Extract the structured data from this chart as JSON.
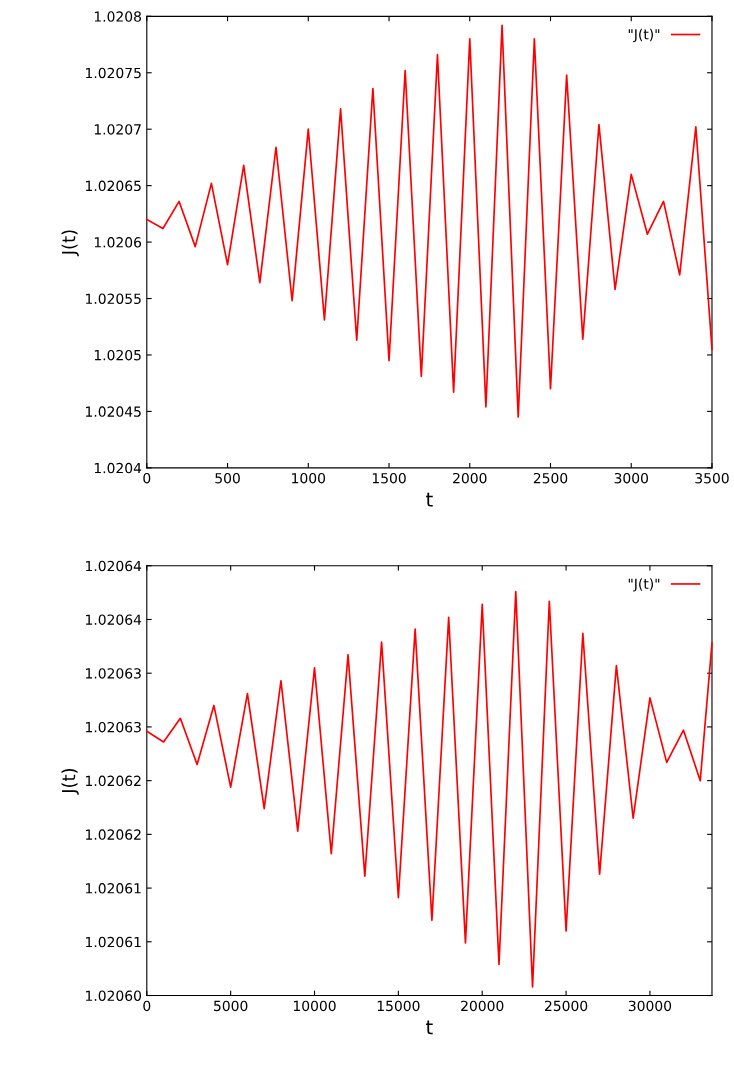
{
  "chart_data": [
    {
      "type": "line",
      "xlabel": "t",
      "ylabel": "J(t)",
      "legend": "top right",
      "grid": false,
      "line_style": "solid",
      "xlim": [
        0,
        3500
      ],
      "xticks": [
        0,
        500,
        1000,
        1500,
        2000,
        2500,
        3000,
        3500
      ],
      "ylim": [
        1.0204,
        1.0208
      ],
      "yticks": [
        1.0204,
        1.02045,
        1.0205,
        1.02055,
        1.0206,
        1.02065,
        1.0207,
        1.02075,
        1.0208
      ],
      "series": [
        {
          "name": "\"J(t)\"",
          "color": "#ff0000",
          "x": [
            0,
            100,
            200,
            300,
            400,
            500,
            600,
            700,
            800,
            900,
            1000,
            1100,
            1200,
            1300,
            1400,
            1500,
            1600,
            1700,
            1800,
            1900,
            2000,
            2100,
            2200,
            2300,
            2400,
            2500,
            2600,
            2700,
            2800,
            2900,
            3000,
            3100,
            3200,
            3300,
            3400,
            3500
          ],
          "values": [
            1.02062,
            1.020612,
            1.020636,
            1.020596,
            1.020652,
            1.02058,
            1.020668,
            1.020564,
            1.020684,
            1.020548,
            1.0207,
            1.020531,
            1.020718,
            1.020513,
            1.020736,
            1.020495,
            1.020752,
            1.020481,
            1.020766,
            1.020467,
            1.02078,
            1.020454,
            1.020792,
            1.020445,
            1.02078,
            1.02047,
            1.020748,
            1.020514,
            1.020704,
            1.020558,
            1.02066,
            1.020607,
            1.020636,
            1.020571,
            1.020702,
            1.020505
          ]
        }
      ]
    },
    {
      "type": "line",
      "xlabel": "t",
      "ylabel": "J(t)",
      "legend": "top right",
      "grid": false,
      "line_style": "solid",
      "xlim": [
        0,
        33700
      ],
      "xticks": [
        0,
        5000,
        10000,
        15000,
        20000,
        25000,
        30000
      ],
      "ylim": [
        1.0206,
        1.02064
      ],
      "yticks": [
        {
          "value": 1.0206,
          "label": "1.02060"
        },
        {
          "value": 1.020605,
          "label": "1.02061"
        },
        {
          "value": 1.02061,
          "label": "1.02061"
        },
        {
          "value": 1.020615,
          "label": "1.02062"
        },
        {
          "value": 1.02062,
          "label": "1.02062"
        },
        {
          "value": 1.020625,
          "label": "1.02063"
        },
        {
          "value": 1.02063,
          "label": "1.02063"
        },
        {
          "value": 1.020635,
          "label": "1.02064"
        },
        {
          "value": 1.02064,
          "label": "1.02064"
        }
      ],
      "series": [
        {
          "name": "\"J(t)\"",
          "color": "#ff0000",
          "x": [
            0,
            1000,
            2000,
            3000,
            4000,
            5000,
            6000,
            7000,
            8000,
            9000,
            10000,
            11000,
            12000,
            13000,
            14000,
            15000,
            16000,
            17000,
            18000,
            19000,
            20000,
            21000,
            22000,
            23000,
            24000,
            25000,
            26000,
            27000,
            28000,
            29000,
            30000,
            31000,
            32000,
            33000,
            33700
          ],
          "values": [
            1.0206246,
            1.0206236,
            1.0206258,
            1.0206215,
            1.020627,
            1.0206194,
            1.0206281,
            1.0206174,
            1.0206293,
            1.0206153,
            1.0206305,
            1.0206132,
            1.0206317,
            1.0206111,
            1.0206329,
            1.0206091,
            1.0206341,
            1.020607,
            1.0206352,
            1.0206049,
            1.0206364,
            1.0206029,
            1.0206376,
            1.0206008,
            1.0206367,
            1.020606,
            1.0206337,
            1.0206113,
            1.0206307,
            1.0206165,
            1.0206277,
            1.0206217,
            1.0206247,
            1.02062,
            1.0206328
          ]
        }
      ]
    }
  ]
}
